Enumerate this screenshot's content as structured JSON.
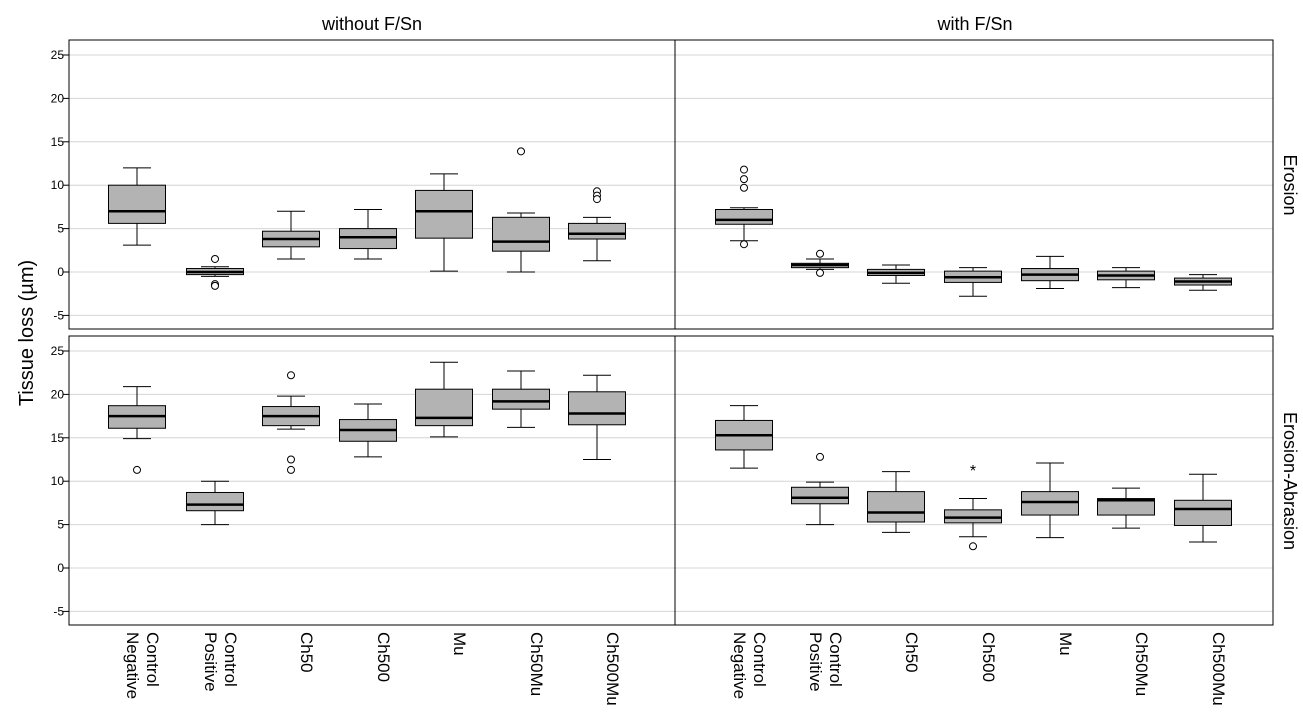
{
  "chart_data": {
    "type": "boxplot",
    "ylabel": "Tissue loss (µm)",
    "ylim": [
      -6.5,
      26.5
    ],
    "yticks": [
      -5,
      0,
      5,
      10,
      15,
      20,
      25
    ],
    "grid": true,
    "column_titles": [
      "without F/Sn",
      "with F/Sn"
    ],
    "row_titles": [
      "Erosion",
      "Erosion-Abrasion"
    ],
    "categories": [
      [
        "Negative",
        "Control"
      ],
      [
        "Positive",
        "Control"
      ],
      [
        "Ch50"
      ],
      [
        "Ch500"
      ],
      [
        "Mu"
      ],
      [
        "Ch50Mu"
      ],
      [
        "Ch500Mu"
      ]
    ],
    "panels": [
      {
        "row": "Erosion",
        "column": "without F/Sn",
        "boxes": [
          {
            "whisker_low": 3.1,
            "q1": 5.6,
            "median": 7.0,
            "q3": 10.0,
            "whisker_high": 12.0,
            "outliers": [],
            "extremes": []
          },
          {
            "whisker_low": -0.5,
            "q1": -0.3,
            "median": 0.0,
            "q3": 0.4,
            "whisker_high": 0.6,
            "outliers": [
              1.5,
              -1.4,
              -1.6
            ],
            "extremes": []
          },
          {
            "whisker_low": 1.5,
            "q1": 2.9,
            "median": 3.8,
            "q3": 4.7,
            "whisker_high": 7.0,
            "outliers": [],
            "extremes": []
          },
          {
            "whisker_low": 1.5,
            "q1": 2.7,
            "median": 4.0,
            "q3": 5.0,
            "whisker_high": 7.2,
            "outliers": [],
            "extremes": []
          },
          {
            "whisker_low": 0.1,
            "q1": 3.9,
            "median": 7.0,
            "q3": 9.4,
            "whisker_high": 11.3,
            "outliers": [],
            "extremes": []
          },
          {
            "whisker_low": 0.0,
            "q1": 2.4,
            "median": 3.5,
            "q3": 6.3,
            "whisker_high": 6.8,
            "outliers": [
              13.9
            ],
            "extremes": []
          },
          {
            "whisker_low": 1.3,
            "q1": 3.8,
            "median": 4.4,
            "q3": 5.6,
            "whisker_high": 6.3,
            "outliers": [
              9.3,
              8.8,
              8.4
            ],
            "extremes": []
          }
        ]
      },
      {
        "row": "Erosion",
        "column": "with F/Sn",
        "boxes": [
          {
            "whisker_low": 3.6,
            "q1": 5.5,
            "median": 6.0,
            "q3": 7.2,
            "whisker_high": 7.4,
            "outliers": [
              11.8,
              10.7,
              9.7,
              3.2
            ],
            "extremes": []
          },
          {
            "whisker_low": 0.3,
            "q1": 0.5,
            "median": 0.8,
            "q3": 1.0,
            "whisker_high": 1.5,
            "outliers": [
              2.1,
              -0.1
            ],
            "extremes": []
          },
          {
            "whisker_low": -1.3,
            "q1": -0.4,
            "median": -0.1,
            "q3": 0.3,
            "whisker_high": 0.8,
            "outliers": [],
            "extremes": []
          },
          {
            "whisker_low": -2.8,
            "q1": -1.2,
            "median": -0.6,
            "q3": 0.1,
            "whisker_high": 0.5,
            "outliers": [],
            "extremes": []
          },
          {
            "whisker_low": -1.9,
            "q1": -1.0,
            "median": -0.3,
            "q3": 0.4,
            "whisker_high": 1.8,
            "outliers": [],
            "extremes": []
          },
          {
            "whisker_low": -1.8,
            "q1": -0.9,
            "median": -0.4,
            "q3": 0.1,
            "whisker_high": 0.5,
            "outliers": [],
            "extremes": []
          },
          {
            "whisker_low": -2.1,
            "q1": -1.5,
            "median": -1.1,
            "q3": -0.7,
            "whisker_high": -0.3,
            "outliers": [],
            "extremes": []
          }
        ]
      },
      {
        "row": "Erosion-Abrasion",
        "column": "without F/Sn",
        "boxes": [
          {
            "whisker_low": 14.9,
            "q1": 16.1,
            "median": 17.5,
            "q3": 18.7,
            "whisker_high": 20.9,
            "outliers": [
              11.3
            ],
            "extremes": []
          },
          {
            "whisker_low": 5.0,
            "q1": 6.6,
            "median": 7.3,
            "q3": 8.7,
            "whisker_high": 10.0,
            "outliers": [],
            "extremes": []
          },
          {
            "whisker_low": 16.0,
            "q1": 16.4,
            "median": 17.5,
            "q3": 18.6,
            "whisker_high": 19.8,
            "outliers": [
              22.2,
              12.5,
              11.3
            ],
            "extremes": []
          },
          {
            "whisker_low": 12.8,
            "q1": 14.6,
            "median": 15.9,
            "q3": 17.1,
            "whisker_high": 18.9,
            "outliers": [],
            "extremes": []
          },
          {
            "whisker_low": 15.1,
            "q1": 16.4,
            "median": 17.3,
            "q3": 20.6,
            "whisker_high": 23.7,
            "outliers": [],
            "extremes": []
          },
          {
            "whisker_low": 16.2,
            "q1": 18.3,
            "median": 19.2,
            "q3": 20.6,
            "whisker_high": 22.7,
            "outliers": [],
            "extremes": []
          },
          {
            "whisker_low": 12.5,
            "q1": 16.5,
            "median": 17.8,
            "q3": 20.3,
            "whisker_high": 22.2,
            "outliers": [],
            "extremes": []
          }
        ]
      },
      {
        "row": "Erosion-Abrasion",
        "column": "with F/Sn",
        "boxes": [
          {
            "whisker_low": 11.5,
            "q1": 13.6,
            "median": 15.3,
            "q3": 17.0,
            "whisker_high": 18.7,
            "outliers": [],
            "extremes": []
          },
          {
            "whisker_low": 5.0,
            "q1": 7.4,
            "median": 8.1,
            "q3": 9.3,
            "whisker_high": 9.9,
            "outliers": [
              12.8
            ],
            "extremes": []
          },
          {
            "whisker_low": 4.1,
            "q1": 5.3,
            "median": 6.4,
            "q3": 8.8,
            "whisker_high": 11.1,
            "outliers": [],
            "extremes": []
          },
          {
            "whisker_low": 3.6,
            "q1": 5.2,
            "median": 5.8,
            "q3": 6.7,
            "whisker_high": 8.0,
            "outliers": [
              2.5
            ],
            "extremes": [
              11.4
            ]
          },
          {
            "whisker_low": 3.5,
            "q1": 6.1,
            "median": 7.6,
            "q3": 8.8,
            "whisker_high": 12.1,
            "outliers": [],
            "extremes": []
          },
          {
            "whisker_low": 4.6,
            "q1": 6.1,
            "median": 7.8,
            "q3": 8.0,
            "whisker_high": 9.2,
            "outliers": [],
            "extremes": []
          },
          {
            "whisker_low": 3.0,
            "q1": 4.9,
            "median": 6.8,
            "q3": 7.8,
            "whisker_high": 10.8,
            "outliers": [],
            "extremes": []
          }
        ]
      }
    ]
  },
  "colors": {
    "box_fill": "#b3b3b3",
    "grid": "#d4d4d4",
    "frame": "#000000"
  }
}
